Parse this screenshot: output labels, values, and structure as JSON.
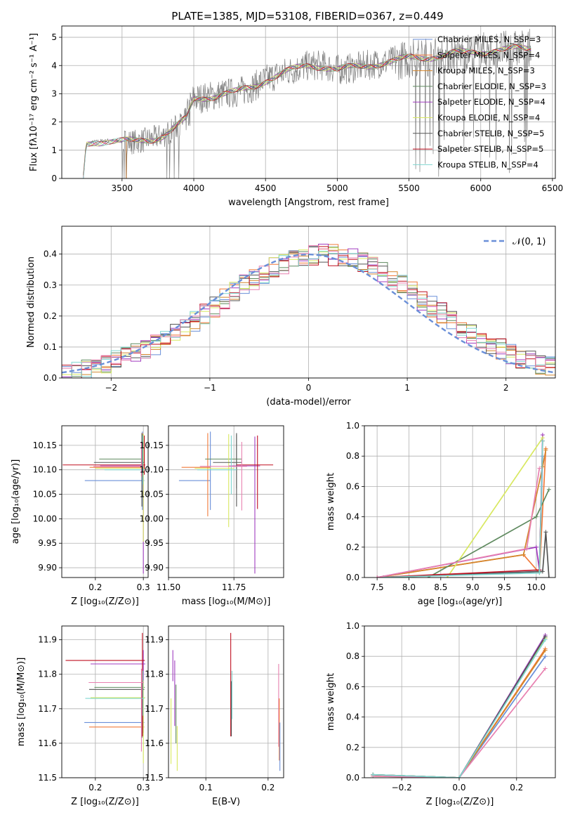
{
  "figure_title": "PLATE=1385, MJD=53108, FIBERID=0367, z=0.449",
  "colors": {
    "chabrier_miles": "#6a8fd8",
    "salpeter_miles": "#f07a3a",
    "kroupa_miles": "#d4862c",
    "chabrier_elodie": "#5f8a5f",
    "salpeter_elodie": "#a03cc0",
    "kroupa_elodie": "#d8e860",
    "chabrier_stelib": "#555555",
    "salpeter_stelib": "#c01020",
    "kroupa_stelib": "#7fd6d0",
    "pink": "#e880b0",
    "data": "#808080",
    "normal": "#6a8fd8"
  },
  "chart_data": [
    {
      "id": "spectrum",
      "type": "line",
      "title": "PLATE=1385, MJD=53108, FIBERID=0367, z=0.449",
      "xlabel": "wavelength [Angstrom, rest frame]",
      "ylabel": "Flux [fλ10⁻¹⁷ erg cm⁻² s⁻¹ A⁻¹]",
      "xlim": [
        3080,
        6520
      ],
      "ylim": [
        0,
        5.4
      ],
      "xticks": [
        3500,
        4000,
        4500,
        5000,
        5500,
        6000,
        6500
      ],
      "yticks": [
        0,
        1,
        2,
        3,
        4,
        5
      ],
      "legend": [
        "Chabrier MILES, N_SSP=3",
        "Salpeter MILES, N_SSP=4",
        "Kroupa MILES, N_SSP=3",
        "Chabrier ELODIE, N_SSP=3",
        "Salpeter ELODIE, N_SSP=4",
        "Kroupa ELODIE, N_SSP=4",
        "Chabrier STELIB, N_SSP=5",
        "Salpeter STELIB, N_SSP=5",
        "Kroupa STELIB, N_SSP=4"
      ],
      "continuum": {
        "x": [
          3230,
          3250,
          3300,
          3400,
          3500,
          3600,
          3700,
          3800,
          3900,
          3950,
          4000,
          4100,
          4200,
          4300,
          4400,
          4500,
          4600,
          4700,
          4800,
          4900,
          5000,
          5100,
          5200,
          5300,
          5400,
          5500,
          5600,
          5700,
          5800,
          5900,
          6000,
          6100,
          6200,
          6300
        ],
        "y": [
          0.0,
          1.2,
          1.3,
          1.35,
          1.3,
          1.3,
          1.4,
          1.55,
          1.9,
          2.1,
          2.8,
          2.9,
          3.0,
          3.05,
          3.2,
          3.5,
          3.7,
          3.85,
          4.0,
          4.0,
          3.85,
          3.9,
          4.0,
          4.1,
          4.15,
          4.25,
          4.3,
          4.35,
          4.4,
          4.45,
          4.5,
          4.55,
          4.55,
          4.6
        ]
      }
    },
    {
      "id": "residual_hist",
      "type": "line",
      "xlabel": "(data-model)/error",
      "ylabel": "Normed distribution",
      "xlim": [
        -2.5,
        2.5
      ],
      "ylim": [
        0,
        0.49
      ],
      "xticks": [
        -2,
        -1,
        0,
        1,
        2
      ],
      "yticks": [
        0.0,
        0.1,
        0.2,
        0.3,
        0.4
      ],
      "legend": [
        "𝒩(0, 1)"
      ],
      "bin_width": 0.1
    },
    {
      "id": "age_vs_Z",
      "type": "scatter",
      "xlabel": "Z [log₁₀(Z/Z⊙)]",
      "ylabel": "age  [log₁₀(age/yr)]",
      "xlim": [
        0.13,
        0.31
      ],
      "ylim": [
        9.88,
        10.19
      ],
      "xticks": [
        0.2,
        0.3
      ],
      "yticks": [
        9.9,
        9.95,
        10.0,
        10.05,
        10.1,
        10.15
      ],
      "points": [
        {
          "c": "chabrier_miles",
          "x": 0.298,
          "xerr": [
            0.12,
            0.004
          ],
          "y": 10.078,
          "yerr": [
            0.06,
            0.1
          ]
        },
        {
          "c": "salpeter_miles",
          "x": 0.298,
          "xerr": [
            0.11,
            0.004
          ],
          "y": 10.105,
          "yerr": [
            0.02,
            0.07
          ]
        },
        {
          "c": "chabrier_elodie",
          "x": 0.298,
          "xerr": [
            0.09,
            0.004
          ],
          "y": 10.122,
          "yerr": [
            0.03,
            0.05
          ]
        },
        {
          "c": "salpeter_elodie",
          "x": 0.3,
          "xerr": [
            0.09,
            0.003
          ],
          "y": 10.108,
          "yerr": [
            0.22,
            0.06
          ]
        },
        {
          "c": "kroupa_elodie",
          "x": 0.3,
          "xerr": [
            0.1,
            0.003
          ],
          "y": 10.103,
          "yerr": [
            0.15,
            0.07
          ]
        },
        {
          "c": "chabrier_stelib",
          "x": 0.297,
          "xerr": [
            0.1,
            0.005
          ],
          "y": 10.115,
          "yerr": [
            0.09,
            0.06
          ]
        },
        {
          "c": "salpeter_stelib",
          "x": 0.302,
          "xerr": [
            0.17,
            0.002
          ],
          "y": 10.11,
          "yerr": [
            0.02,
            0.06
          ]
        },
        {
          "c": "kroupa_stelib",
          "x": 0.299,
          "xerr": [
            0.08,
            0.004
          ],
          "y": 10.1,
          "yerr": [
            0.03,
            0.07
          ]
        },
        {
          "c": "pink",
          "x": 0.296,
          "xerr": [
            0.1,
            0.004
          ],
          "y": 10.107,
          "yerr": [
            0.02,
            0.05
          ]
        }
      ]
    },
    {
      "id": "age_vs_mass",
      "type": "scatter",
      "xlabel": "mass [log₁₀(M/M⊙)]",
      "ylabel": "",
      "xlim": [
        11.5,
        11.94
      ],
      "ylim": [
        9.88,
        10.19
      ],
      "xticks": [
        11.5,
        11.75
      ],
      "yticks": [
        9.9,
        9.95,
        10.0,
        10.05,
        10.1,
        10.15
      ],
      "points": [
        {
          "c": "chabrier_miles",
          "x": 11.66,
          "xerr": [
            0.12,
            0.0
          ],
          "y": 10.078,
          "yerr": [
            0.06,
            0.1
          ]
        },
        {
          "c": "salpeter_miles",
          "x": 11.65,
          "xerr": [
            0.1,
            0.01
          ],
          "y": 10.105,
          "yerr": [
            0.1,
            0.07
          ]
        },
        {
          "c": "chabrier_elodie",
          "x": 11.76,
          "xerr": [
            0.12,
            0.02
          ],
          "y": 10.122,
          "yerr": [
            0.06,
            0.05
          ]
        },
        {
          "c": "salpeter_elodie",
          "x": 11.83,
          "xerr": [
            0.1,
            0.02
          ],
          "y": 10.108,
          "yerr": [
            0.22,
            0.06
          ]
        },
        {
          "c": "kroupa_elodie",
          "x": 11.73,
          "xerr": [
            0.13,
            0.02
          ],
          "y": 10.103,
          "yerr": [
            0.12,
            0.07
          ]
        },
        {
          "c": "chabrier_stelib",
          "x": 11.76,
          "xerr": [
            0.09,
            0.02
          ],
          "y": 10.115,
          "yerr": [
            0.09,
            0.06
          ]
        },
        {
          "c": "salpeter_stelib",
          "x": 11.84,
          "xerr": [
            0.08,
            0.06
          ],
          "y": 10.11,
          "yerr": [
            0.09,
            0.06
          ]
        },
        {
          "c": "kroupa_stelib",
          "x": 11.74,
          "xerr": [
            0.13,
            0.02
          ],
          "y": 10.1,
          "yerr": [
            0.05,
            0.07
          ]
        },
        {
          "c": "pink",
          "x": 11.78,
          "xerr": [
            0.16,
            0.02
          ],
          "y": 10.107,
          "yerr": [
            0.09,
            0.05
          ]
        }
      ]
    },
    {
      "id": "weight_vs_age",
      "type": "line",
      "xlabel": "age  [log₁₀(age/yr)]",
      "ylabel": "mass weight",
      "xlim": [
        7.3,
        10.3
      ],
      "ylim": [
        0,
        1.0
      ],
      "xticks": [
        7.5,
        8.0,
        8.5,
        9.0,
        9.5,
        10.0
      ],
      "yticks": [
        0.0,
        0.2,
        0.4,
        0.6,
        0.8,
        1.0
      ],
      "series": [
        {
          "c": "chabrier_miles",
          "x": [
            7.5,
            10.05,
            10.1
          ],
          "y": [
            0.0,
            0.04,
            0.8
          ]
        },
        {
          "c": "salpeter_miles",
          "x": [
            7.5,
            9.8,
            10.05,
            10.15
          ],
          "y": [
            0.0,
            0.15,
            0.03,
            0.85
          ]
        },
        {
          "c": "kroupa_miles",
          "x": [
            7.5,
            9.8,
            10.1,
            10.15
          ],
          "y": [
            0.0,
            0.15,
            0.73,
            0.84
          ]
        },
        {
          "c": "chabrier_elodie",
          "x": [
            8.3,
            10.0,
            10.2
          ],
          "y": [
            0.0,
            0.4,
            0.58
          ]
        },
        {
          "c": "salpeter_elodie",
          "x": [
            7.5,
            10.0,
            10.05,
            10.1
          ],
          "y": [
            0.0,
            0.2,
            0.05,
            0.94
          ]
        },
        {
          "c": "kroupa_elodie",
          "x": [
            8.6,
            10.1
          ],
          "y": [
            0.0,
            0.92
          ]
        },
        {
          "c": "chabrier_stelib",
          "x": [
            7.6,
            10.1,
            10.15,
            10.2
          ],
          "y": [
            0.0,
            0.04,
            0.3,
            0.0
          ]
        },
        {
          "c": "salpeter_stelib",
          "x": [
            7.5,
            10.05,
            10.1
          ],
          "y": [
            0.0,
            0.05,
            0.9
          ]
        },
        {
          "c": "kroupa_stelib",
          "x": [
            7.5,
            10.05,
            10.1
          ],
          "y": [
            0.0,
            0.03,
            0.9
          ]
        },
        {
          "c": "pink",
          "x": [
            7.5,
            9.85,
            10.05
          ],
          "y": [
            0.0,
            0.19,
            0.72
          ]
        }
      ]
    },
    {
      "id": "mass_vs_Z",
      "type": "scatter",
      "xlabel": "Z [log₁₀(Z/Z⊙)]",
      "ylabel": "mass [log₁₀(M/M⊙)]",
      "xlim": [
        0.13,
        0.31
      ],
      "ylim": [
        11.5,
        11.94
      ],
      "xticks": [
        0.2,
        0.3
      ],
      "yticks": [
        11.5,
        11.6,
        11.7,
        11.8,
        11.9
      ],
      "points": [
        {
          "c": "chabrier_miles",
          "x": 0.297,
          "xerr": [
            0.12,
            0.005
          ],
          "y": 11.66,
          "yerr": [
            0.0,
            0.0
          ]
        },
        {
          "c": "salpeter_miles",
          "x": 0.297,
          "xerr": [
            0.11,
            0.005
          ],
          "y": 11.647,
          "yerr": [
            0.0,
            0.0
          ]
        },
        {
          "c": "chabrier_elodie",
          "x": 0.298,
          "xerr": [
            0.1,
            0.005
          ],
          "y": 11.762,
          "yerr": [
            0.14,
            0.02
          ]
        },
        {
          "c": "salpeter_elodie",
          "x": 0.3,
          "xerr": [
            0.11,
            0.004
          ],
          "y": 11.83,
          "yerr": [
            0.2,
            0.04
          ]
        },
        {
          "c": "kroupa_elodie",
          "x": 0.3,
          "xerr": [
            0.11,
            0.004
          ],
          "y": 11.732,
          "yerr": [
            0.19,
            0.05
          ]
        },
        {
          "c": "chabrier_stelib",
          "x": 0.297,
          "xerr": [
            0.11,
            0.005
          ],
          "y": 11.756,
          "yerr": [
            0.14,
            0.02
          ]
        },
        {
          "c": "salpeter_stelib",
          "x": 0.298,
          "xerr": [
            0.16,
            0.005
          ],
          "y": 11.84,
          "yerr": [
            0.22,
            0.08
          ]
        },
        {
          "c": "kroupa_stelib",
          "x": 0.299,
          "xerr": [
            0.12,
            0.003
          ],
          "y": 11.73,
          "yerr": [
            0.05,
            0.08
          ]
        },
        {
          "c": "pink",
          "x": 0.296,
          "xerr": [
            0.11,
            0.005
          ],
          "y": 11.776,
          "yerr": [
            0.2,
            0.04
          ]
        }
      ]
    },
    {
      "id": "mass_vs_ebv",
      "type": "scatter",
      "xlabel": "E(B-V)",
      "ylabel": "",
      "xlim": [
        0.04,
        0.225
      ],
      "ylim": [
        11.5,
        11.94
      ],
      "xticks": [
        0.1,
        0.2
      ],
      "yticks": [
        11.5,
        11.6,
        11.7,
        11.8,
        11.9
      ],
      "vlines": [
        {
          "c": "salpeter_elodie",
          "x": 0.047,
          "y0": 11.78,
          "y1": 11.87
        },
        {
          "c": "kroupa_elodie",
          "x": 0.044,
          "y0": 11.54,
          "y1": 11.73
        },
        {
          "c": "salpeter_elodie",
          "x": 0.05,
          "y0": 11.65,
          "y1": 11.84
        },
        {
          "c": "chabrier_elodie",
          "x": 0.052,
          "y0": 11.6,
          "y1": 11.77
        },
        {
          "c": "kroupa_elodie",
          "x": 0.054,
          "y0": 11.52,
          "y1": 11.65
        },
        {
          "c": "salpeter_stelib",
          "x": 0.14,
          "y0": 11.62,
          "y1": 11.92
        },
        {
          "c": "chabrier_stelib",
          "x": 0.141,
          "y0": 11.62,
          "y1": 11.78
        },
        {
          "c": "kroupa_stelib",
          "x": 0.142,
          "y0": 11.67,
          "y1": 11.81
        },
        {
          "c": "pink",
          "x": 0.217,
          "y0": 11.59,
          "y1": 11.83
        },
        {
          "c": "salpeter_miles",
          "x": 0.218,
          "y0": 11.55,
          "y1": 11.73
        },
        {
          "c": "chabrier_miles",
          "x": 0.219,
          "y0": 11.52,
          "y1": 11.66
        }
      ]
    },
    {
      "id": "weight_vs_Z",
      "type": "line",
      "xlabel": "Z [log₁₀(Z/Z⊙)]",
      "ylabel": "mass weight",
      "xlim": [
        -0.33,
        0.335
      ],
      "ylim": [
        0,
        1.0
      ],
      "xticks": [
        -0.2,
        0.0,
        0.2
      ],
      "yticks": [
        0.0,
        0.2,
        0.4,
        0.6,
        0.8,
        1.0
      ],
      "series": [
        {
          "c": "chabrier_miles",
          "x": [
            -0.3,
            0.0,
            0.3
          ],
          "y": [
            0.02,
            0.0,
            0.8
          ]
        },
        {
          "c": "salpeter_miles",
          "x": [
            -0.3,
            0.0,
            0.3
          ],
          "y": [
            0.01,
            0.0,
            0.85
          ]
        },
        {
          "c": "kroupa_miles",
          "x": [
            -0.3,
            0.0,
            0.3
          ],
          "y": [
            0.02,
            0.0,
            0.84
          ]
        },
        {
          "c": "chabrier_elodie",
          "x": [
            -0.3,
            0.0,
            0.3
          ],
          "y": [
            0.02,
            0.0,
            0.92
          ]
        },
        {
          "c": "salpeter_elodie",
          "x": [
            -0.3,
            0.0,
            0.3
          ],
          "y": [
            0.02,
            0.0,
            0.94
          ]
        },
        {
          "c": "kroupa_elodie",
          "x": [
            -0.3,
            0.0,
            0.3
          ],
          "y": [
            0.02,
            0.0,
            0.92
          ]
        },
        {
          "c": "chabrier_stelib",
          "x": [
            -0.3,
            0.0,
            0.3
          ],
          "y": [
            0.02,
            0.0,
            0.93
          ]
        },
        {
          "c": "pink",
          "x": [
            -0.3,
            0.0,
            0.3
          ],
          "y": [
            0.01,
            0.0,
            0.72
          ]
        },
        {
          "c": "kroupa_stelib",
          "x": [
            -0.3,
            0.0,
            0.3
          ],
          "y": [
            0.02,
            0.0,
            0.91
          ]
        }
      ]
    }
  ]
}
